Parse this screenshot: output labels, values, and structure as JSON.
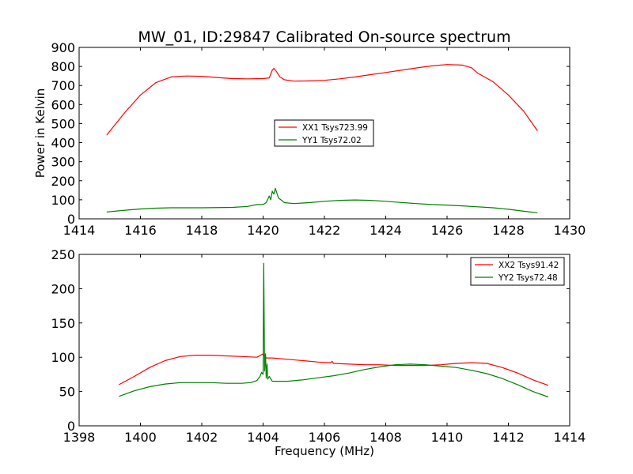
{
  "chart_data": [
    {
      "type": "line",
      "title": "MW_01, ID:29847 Calibrated On-source spectrum",
      "xlabel": "",
      "ylabel": "Power in Kelvin",
      "xlim": [
        1414,
        1430
      ],
      "ylim": [
        0,
        900
      ],
      "xticks": [
        "1414",
        "1416",
        "1418",
        "1420",
        "1422",
        "1424",
        "1426",
        "1428",
        "1430"
      ],
      "yticks": [
        "0",
        "100",
        "200",
        "300",
        "400",
        "500",
        "600",
        "700",
        "800",
        "900"
      ],
      "legend_position": "center",
      "series": [
        {
          "name": "XX1 Tsys723.99",
          "color": "#ff0000",
          "x": [
            1414.9,
            1415.5,
            1416.0,
            1416.5,
            1417.0,
            1417.5,
            1418.0,
            1418.5,
            1419.0,
            1419.5,
            1420.0,
            1420.2,
            1420.3,
            1420.35,
            1420.45,
            1420.55,
            1420.7,
            1421.0,
            1421.5,
            1422.0,
            1422.5,
            1423.0,
            1423.5,
            1424.0,
            1424.5,
            1425.0,
            1425.5,
            1426.0,
            1426.5,
            1426.8,
            1427.0,
            1427.5,
            1428.0,
            1428.5,
            1428.95
          ],
          "y": [
            440,
            560,
            650,
            715,
            745,
            750,
            748,
            742,
            736,
            735,
            736,
            740,
            780,
            790,
            770,
            745,
            730,
            723,
            724,
            727,
            735,
            745,
            757,
            768,
            780,
            792,
            803,
            810,
            807,
            793,
            765,
            720,
            650,
            565,
            462
          ]
        },
        {
          "name": "YY1 Tsys72.02",
          "color": "#008000",
          "x": [
            1414.9,
            1415.5,
            1416.0,
            1416.5,
            1417.0,
            1418.0,
            1419.0,
            1419.5,
            1419.8,
            1420.0,
            1420.1,
            1420.2,
            1420.25,
            1420.3,
            1420.35,
            1420.4,
            1420.5,
            1420.7,
            1421.0,
            1421.5,
            1422.0,
            1422.5,
            1423.0,
            1423.5,
            1424.0,
            1424.5,
            1425.0,
            1425.5,
            1426.0,
            1426.5,
            1427.0,
            1427.5,
            1428.0,
            1428.5,
            1428.95
          ],
          "y": [
            36,
            45,
            52,
            56,
            58,
            58,
            60,
            65,
            75,
            75,
            85,
            120,
            100,
            145,
            130,
            160,
            110,
            85,
            80,
            85,
            92,
            97,
            99,
            97,
            92,
            86,
            80,
            75,
            72,
            68,
            63,
            58,
            50,
            40,
            32
          ]
        }
      ]
    },
    {
      "type": "line",
      "title": "",
      "xlabel": "Frequency (MHz)",
      "ylabel": "",
      "xlim": [
        1398,
        1414
      ],
      "ylim": [
        0,
        250
      ],
      "xticks": [
        "1398",
        "1400",
        "1402",
        "1404",
        "1406",
        "1408",
        "1410",
        "1412",
        "1414"
      ],
      "yticks": [
        "0",
        "50",
        "100",
        "150",
        "200",
        "250"
      ],
      "legend_position": "top-right",
      "series": [
        {
          "name": "XX2 Tsys91.42",
          "color": "#ff0000",
          "x": [
            1399.3,
            1399.8,
            1400.3,
            1400.8,
            1401.3,
            1401.8,
            1402.3,
            1402.8,
            1403.3,
            1403.8,
            1404.0,
            1404.1,
            1404.3,
            1404.8,
            1405.3,
            1405.8,
            1406.2,
            1406.25,
            1406.3,
            1406.8,
            1407.3,
            1407.8,
            1408.3,
            1408.8,
            1409.3,
            1409.8,
            1410.3,
            1410.8,
            1411.3,
            1411.8,
            1412.3,
            1412.8,
            1413.3
          ],
          "y": [
            60,
            72,
            85,
            95,
            101,
            103,
            103,
            102,
            101,
            100,
            105,
            99,
            99,
            97,
            95,
            93,
            92,
            94,
            91,
            90,
            89,
            89,
            88,
            88,
            88,
            89,
            91,
            92,
            91,
            85,
            77,
            67,
            59
          ]
        },
        {
          "name": "YY2 Tsys72.48",
          "color": "#008000",
          "x": [
            1399.3,
            1399.8,
            1400.3,
            1400.8,
            1401.3,
            1401.8,
            1402.3,
            1402.8,
            1403.3,
            1403.6,
            1403.8,
            1403.9,
            1403.95,
            1404.0,
            1404.02,
            1404.05,
            1404.08,
            1404.1,
            1404.13,
            1404.15,
            1404.2,
            1404.3,
            1404.8,
            1405.3,
            1405.8,
            1406.3,
            1406.8,
            1407.3,
            1407.8,
            1408.3,
            1408.8,
            1409.3,
            1409.8,
            1410.3,
            1410.8,
            1411.3,
            1411.8,
            1412.3,
            1412.8,
            1413.3
          ],
          "y": [
            43,
            51,
            57,
            61,
            63,
            63,
            63,
            62,
            62,
            63,
            66,
            72,
            78,
            75,
            237,
            80,
            105,
            70,
            90,
            68,
            72,
            65,
            65,
            67,
            70,
            73,
            77,
            82,
            86,
            89,
            90,
            89,
            87,
            85,
            81,
            76,
            69,
            60,
            50,
            42
          ]
        }
      ]
    }
  ]
}
